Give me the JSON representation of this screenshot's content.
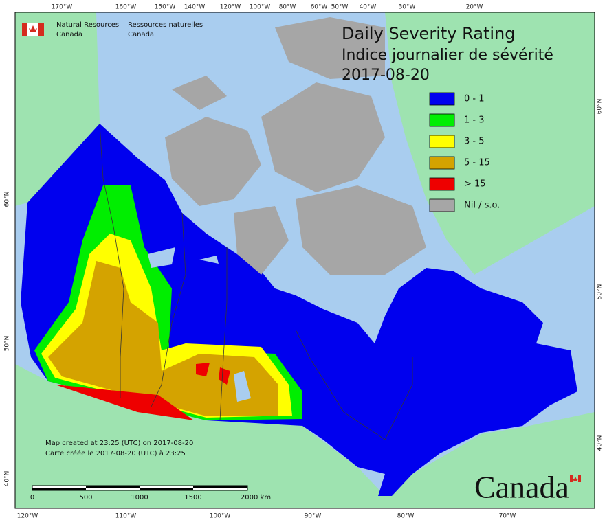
{
  "header": {
    "org_en": [
      "Natural Resources",
      "Canada"
    ],
    "org_fr": [
      "Ressources naturelles",
      "Canada"
    ]
  },
  "title": [
    "Daily Severity Rating",
    "Indice journalier de sévérité",
    "2017-08-20"
  ],
  "legend": [
    {
      "label": "0 - 1",
      "color": "#0000ee"
    },
    {
      "label": "1 - 3",
      "color": "#00ee00"
    },
    {
      "label": "3 - 5",
      "color": "#ffff00"
    },
    {
      "label": "5 - 15",
      "color": "#d4a300"
    },
    {
      "label": "> 15",
      "color": "#ee0000"
    },
    {
      "label": "Nil / s.o.",
      "color": "#a6a6a6"
    }
  ],
  "graticule": {
    "top": [
      "170°W",
      "160°W",
      "150°W",
      "140°W",
      "120°W",
      "100°W",
      "80°W",
      "60°W",
      "50°W",
      "40°W",
      "30°W",
      "20°W"
    ],
    "bottom": [
      "120°W",
      "110°W",
      "100°W",
      "90°W",
      "80°W",
      "70°W"
    ],
    "left": [
      "60°N",
      "50°N",
      "40°N"
    ],
    "right": [
      "60°N",
      "50°N",
      "40°N"
    ]
  },
  "credits": [
    "Map created at 23:25 (UTC) on 2017-08-20",
    "Carte créée le 2017-08-20 (UTC) à 23:25"
  ],
  "scale_bar": [
    "0",
    "500",
    "1000",
    "1500",
    "2000 km"
  ],
  "wordmark": "Canada"
}
